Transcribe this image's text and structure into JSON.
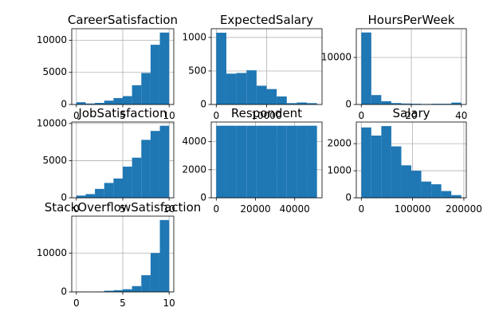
{
  "chart_data": [
    {
      "type": "bar",
      "title": "CareerSatisfaction",
      "bins": [
        [
          0,
          1
        ],
        [
          1,
          2
        ],
        [
          2,
          3
        ],
        [
          3,
          4
        ],
        [
          4,
          5
        ],
        [
          5,
          6
        ],
        [
          6,
          7
        ],
        [
          7,
          8
        ],
        [
          8,
          9
        ],
        [
          9,
          10
        ]
      ],
      "values": [
        350,
        150,
        250,
        600,
        1000,
        1300,
        3000,
        4900,
        9300,
        11200
      ],
      "xlim": [
        -0.5,
        10.5
      ],
      "ylim": [
        0,
        11800
      ],
      "xticks": [
        0,
        5,
        10
      ],
      "yticks": [
        0,
        5000,
        10000
      ]
    },
    {
      "type": "bar",
      "title": "ExpectedSalary",
      "bins": [
        [
          0,
          2000
        ],
        [
          2000,
          4000
        ],
        [
          4000,
          6000
        ],
        [
          6000,
          8000
        ],
        [
          8000,
          10000
        ],
        [
          10000,
          12000
        ],
        [
          12000,
          14000
        ],
        [
          14000,
          16000
        ],
        [
          16000,
          18000
        ],
        [
          18000,
          20000
        ]
      ],
      "values": [
        1070,
        460,
        470,
        510,
        280,
        230,
        120,
        20,
        30,
        20
      ],
      "xlim": [
        -1000,
        21000
      ],
      "ylim": [
        0,
        1130
      ],
      "xticks": [
        0,
        10000
      ],
      "yticks": [
        0,
        500,
        1000
      ]
    },
    {
      "type": "bar",
      "title": "HoursPerWeek",
      "bins": [
        [
          0,
          4
        ],
        [
          4,
          8
        ],
        [
          8,
          12
        ],
        [
          12,
          16
        ],
        [
          16,
          20
        ],
        [
          20,
          24
        ],
        [
          24,
          28
        ],
        [
          28,
          32
        ],
        [
          32,
          36
        ],
        [
          36,
          40
        ]
      ],
      "values": [
        15300,
        2000,
        700,
        300,
        200,
        150,
        100,
        150,
        150,
        400
      ],
      "xlim": [
        -2,
        42
      ],
      "ylim": [
        0,
        16100
      ],
      "xticks": [
        0,
        20,
        40
      ],
      "yticks": [
        0,
        10000
      ]
    },
    {
      "type": "bar",
      "title": "JobSatisfaction",
      "bins": [
        [
          0,
          1
        ],
        [
          1,
          2
        ],
        [
          2,
          3
        ],
        [
          3,
          4
        ],
        [
          4,
          5
        ],
        [
          5,
          6
        ],
        [
          6,
          7
        ],
        [
          7,
          8
        ],
        [
          8,
          9
        ],
        [
          9,
          10
        ]
      ],
      "values": [
        300,
        500,
        1200,
        2000,
        2600,
        4200,
        5400,
        7800,
        9000,
        9700
      ],
      "xlim": [
        -0.5,
        10.5
      ],
      "ylim": [
        0,
        10200
      ],
      "xticks": [
        0,
        5,
        10
      ],
      "yticks": [
        0,
        5000,
        10000
      ]
    },
    {
      "type": "bar",
      "title": "Respondent",
      "bins": [
        [
          0,
          5136
        ],
        [
          5136,
          10272
        ],
        [
          10272,
          15408
        ],
        [
          15408,
          20544
        ],
        [
          20544,
          25680
        ],
        [
          25680,
          30816
        ],
        [
          30816,
          35952
        ],
        [
          35952,
          41088
        ],
        [
          41088,
          46224
        ],
        [
          46224,
          51360
        ]
      ],
      "values": [
        5136,
        5136,
        5136,
        5136,
        5136,
        5136,
        5136,
        5136,
        5136,
        5136
      ],
      "xlim": [
        -2568,
        53928
      ],
      "ylim": [
        0,
        5400
      ],
      "xticks": [
        0,
        20000,
        40000
      ],
      "yticks": [
        0,
        2000,
        4000
      ]
    },
    {
      "type": "bar",
      "title": "Salary",
      "bins": [
        [
          0,
          19500
        ],
        [
          19500,
          39000
        ],
        [
          39000,
          58500
        ],
        [
          58500,
          78000
        ],
        [
          78000,
          97500
        ],
        [
          97500,
          117000
        ],
        [
          117000,
          136500
        ],
        [
          136500,
          156000
        ],
        [
          156000,
          175500
        ],
        [
          175500,
          195000
        ]
      ],
      "values": [
        2600,
        2300,
        2650,
        1900,
        1200,
        1000,
        600,
        500,
        250,
        100
      ],
      "xlim": [
        -9750,
        204750
      ],
      "ylim": [
        0,
        2800
      ],
      "xticks": [
        0,
        100000,
        200000
      ],
      "yticks": [
        0,
        1000,
        2000
      ]
    },
    {
      "type": "bar",
      "title": "StackOverflowSatisfaction",
      "bins": [
        [
          0,
          1
        ],
        [
          1,
          2
        ],
        [
          2,
          3
        ],
        [
          3,
          4
        ],
        [
          4,
          5
        ],
        [
          5,
          6
        ],
        [
          6,
          7
        ],
        [
          7,
          8
        ],
        [
          8,
          9
        ],
        [
          9,
          10
        ]
      ],
      "values": [
        60,
        40,
        80,
        300,
        450,
        700,
        1500,
        4300,
        10000,
        18500
      ],
      "xlim": [
        -0.5,
        10.5
      ],
      "ylim": [
        0,
        19500
      ],
      "xticks": [
        0,
        5,
        10
      ],
      "yticks": [
        0,
        10000
      ]
    }
  ]
}
